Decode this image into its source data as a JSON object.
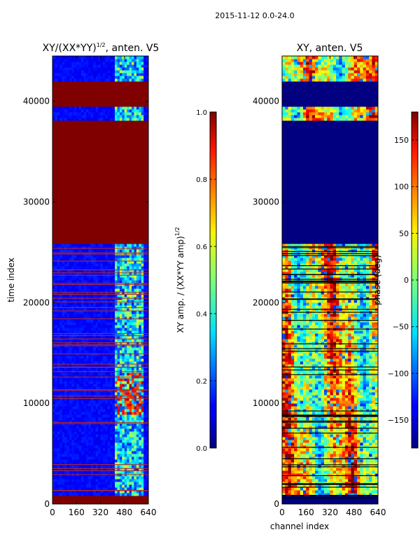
{
  "figure": {
    "suptitle": "2015-11-12 0.0-24.0"
  },
  "chart_data": [
    {
      "type": "heatmap",
      "title_main": "XY/(XX*YY)",
      "title_exp": "1/2",
      "title_rest": ", anten. V5",
      "xlabel": "",
      "ylabel": "time index",
      "x_ticks": [
        "0",
        "160",
        "320",
        "480",
        "640"
      ],
      "y_ticks": [
        "0",
        "10000",
        "20000",
        "30000",
        "40000"
      ],
      "xlim": [
        0,
        640
      ],
      "ylim": [
        0,
        44500
      ],
      "colorbar": {
        "label_main": "XY amp. / (XX*YY amp)",
        "label_exp": "1/2",
        "ticks": [
          "0.0",
          "0.2",
          "0.4",
          "0.6",
          "0.8",
          "1.0"
        ],
        "range": [
          0.0,
          1.0
        ]
      },
      "saturated_time_bands": [
        [
          0,
          800
        ],
        [
          25800,
          38200
        ],
        [
          39600,
          41900
        ]
      ],
      "active_channel_range": [
        410,
        600
      ],
      "notes": "Mostly low amplitude (~0.1); bright fringes in channels ~410-600; red (saturated ~1.0) horizontal flag lines"
    },
    {
      "type": "heatmap",
      "title_main": "XY, anten. V5",
      "xlabel": "channel index",
      "ylabel": "",
      "x_ticks": [
        "0",
        "160",
        "320",
        "480",
        "640"
      ],
      "y_ticks": [
        "0",
        "10000",
        "20000",
        "30000",
        "40000"
      ],
      "xlim": [
        0,
        640
      ],
      "ylim": [
        0,
        44500
      ],
      "colorbar": {
        "label": "phase (deg)",
        "ticks": [
          "-150",
          "-100",
          "-50",
          "0",
          "50",
          "100",
          "150"
        ],
        "range": [
          -180,
          180
        ]
      },
      "flagged_time_bands": [
        [
          0,
          800
        ],
        [
          25800,
          38200
        ],
        [
          39600,
          41900
        ]
      ],
      "notes": "Phase varies widely across the band; blue (~-180) in flagged bands; black horizontal gaps"
    }
  ]
}
